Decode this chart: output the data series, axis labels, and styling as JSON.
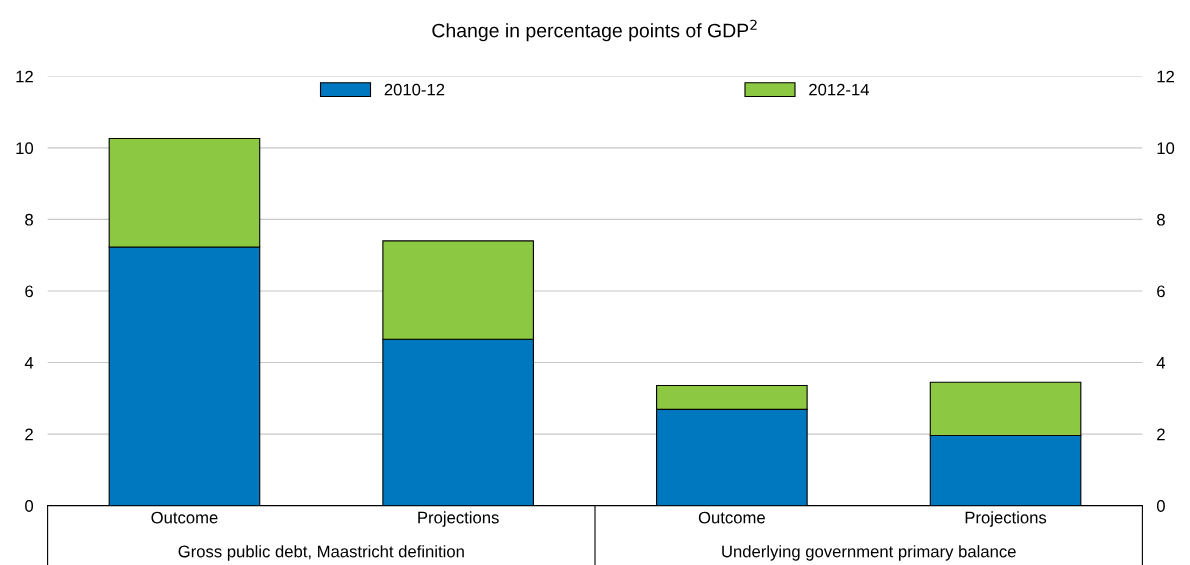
{
  "chart_data": {
    "type": "bar",
    "title": "Change in percentage points of GDP$^{2}$",
    "categories": [
      "Outcome",
      "Projections",
      "Outcome",
      "Projections"
    ],
    "annotations": [
      "Gross public debt, Maastricht definition",
      "Underlying government primary balance"
    ],
    "stacked": true,
    "series": [
      {
        "name": "2010-12",
        "color": "#0078c0",
        "values": [
          7.23,
          4.65,
          2.69,
          1.96
        ]
      },
      {
        "name": "2012-14",
        "color": "#8cc841",
        "values": [
          3.03,
          2.75,
          0.67,
          1.49
        ]
      }
    ],
    "ylim": [
      0,
      12
    ],
    "yticks": [
      0,
      2,
      4,
      6,
      8,
      10,
      12
    ],
    "y2lim": [
      0,
      12
    ],
    "y2ticks": [
      0,
      2,
      4,
      6,
      8,
      10,
      12
    ],
    "grid": "y",
    "legend": "top"
  }
}
